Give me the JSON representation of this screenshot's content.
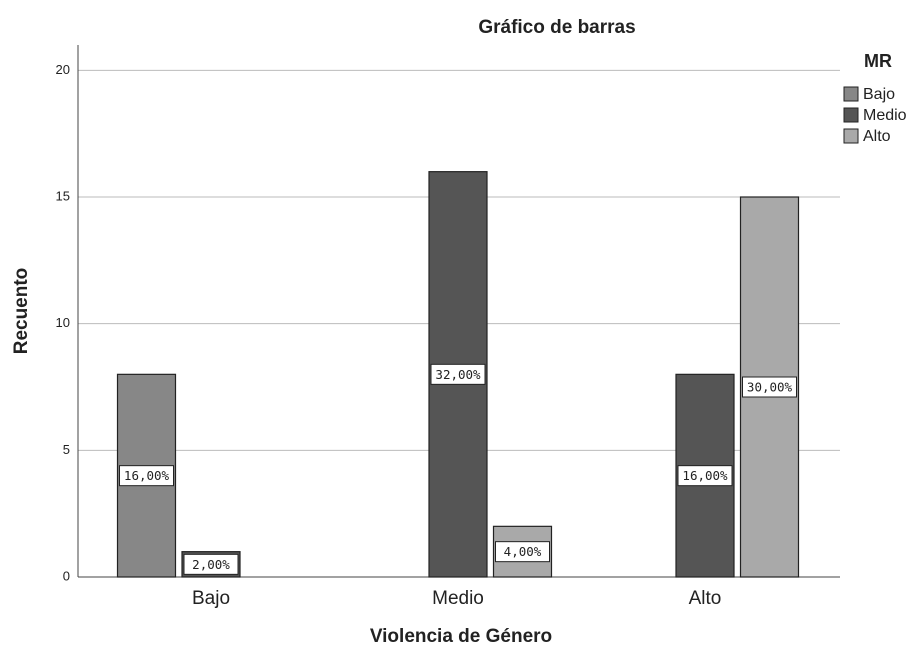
{
  "chart_data": {
    "type": "bar",
    "title": "Gráfico de barras",
    "x_label": "Violencia de Género",
    "y_label": "Recuento",
    "legend_title": "MR",
    "legend": "right",
    "categories": [
      "Bajo",
      "Medio",
      "Alto"
    ],
    "series": [
      {
        "name": "Bajo",
        "color": "#878787",
        "values": [
          8,
          null,
          null
        ],
        "value_labels": [
          "16,00%",
          null,
          null
        ]
      },
      {
        "name": "Medio",
        "color": "#555555",
        "values": [
          1,
          16,
          8
        ],
        "value_labels": [
          "2,00%",
          "32,00%",
          "16,00%"
        ]
      },
      {
        "name": "Alto",
        "color": "#a9a9a9",
        "values": [
          null,
          2,
          15
        ],
        "value_labels": [
          null,
          "4,00%",
          "30,00%"
        ]
      }
    ],
    "ylim": [
      0,
      21
    ],
    "yticks": [
      0,
      5,
      10,
      15,
      20
    ],
    "grid": true
  }
}
